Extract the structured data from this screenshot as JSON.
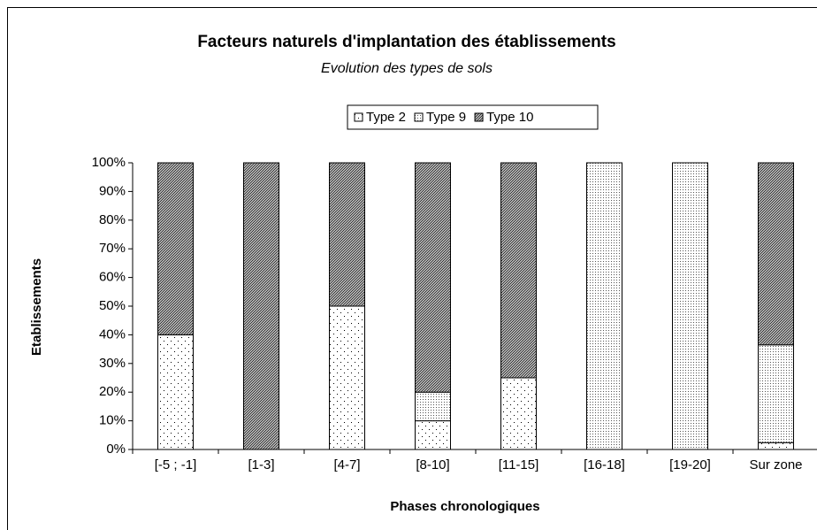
{
  "chart_data": {
    "type": "stacked-bar",
    "title": "Facteurs naturels d'implantation des établissements",
    "subtitle": "Evolution des types de sols",
    "x_label": "Phases chronologiques",
    "y_label": "Etablissements",
    "categories": [
      "[-5 ; -1]",
      "[1-3]",
      "[4-7]",
      "[8-10]",
      "[11-15]",
      "[16-18]",
      "[19-20]",
      "Sur zone"
    ],
    "series": [
      {
        "name": "Type 2",
        "color": "#ffffff",
        "pattern": "sparse-dots",
        "values": [
          40,
          0,
          50,
          10,
          25,
          0,
          0,
          2.4
        ]
      },
      {
        "name": "Type 9",
        "color": "#ffffff",
        "pattern": "dense-dots",
        "values": [
          0,
          0,
          0,
          10,
          0,
          100,
          100,
          34.1
        ]
      },
      {
        "name": "Type 10",
        "color": "#9a9a9a",
        "pattern": "crosshatch",
        "values": [
          60,
          100,
          50,
          80,
          75,
          0,
          0,
          63.5
        ]
      }
    ],
    "ylim": [
      0,
      100
    ],
    "yticks": [
      {
        "value": 0,
        "label": "0%"
      },
      {
        "value": 10,
        "label": "10%"
      },
      {
        "value": 20,
        "label": "20%"
      },
      {
        "value": 30,
        "label": "30%"
      },
      {
        "value": 40,
        "label": "40%"
      },
      {
        "value": 50,
        "label": "50%"
      },
      {
        "value": 60,
        "label": "60%"
      },
      {
        "value": 70,
        "label": "70%"
      },
      {
        "value": 80,
        "label": "80%"
      },
      {
        "value": 90,
        "label": "90%"
      },
      {
        "value": 100,
        "label": "100%"
      }
    ],
    "legend": "top"
  }
}
